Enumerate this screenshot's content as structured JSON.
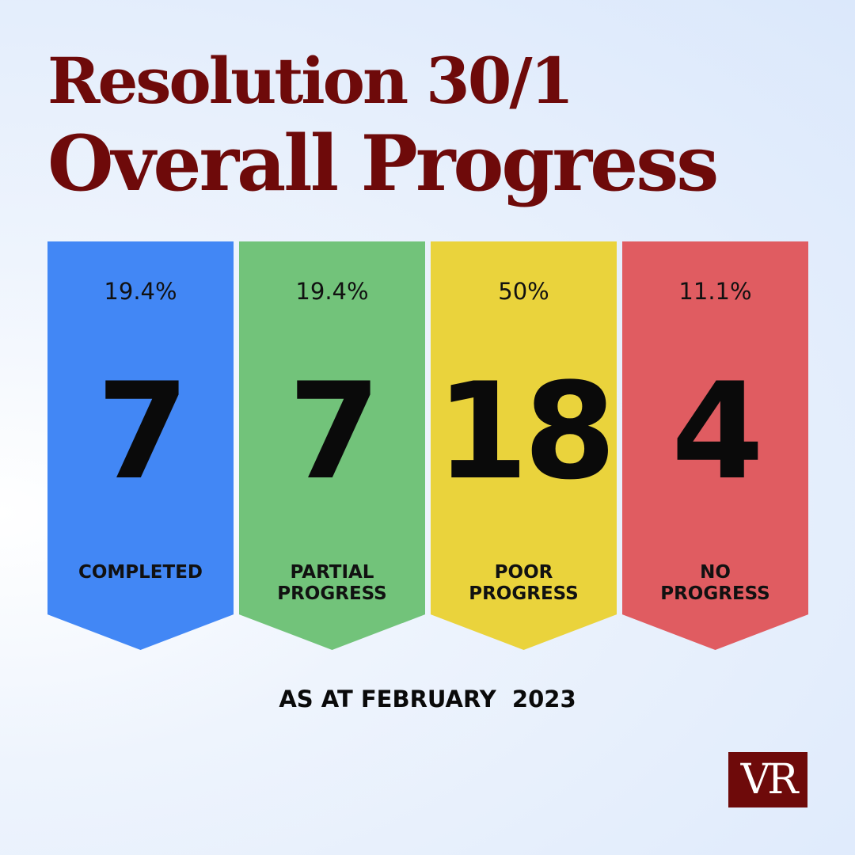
{
  "title": {
    "line1": "Resolution 30/1",
    "line2": "Overall Progress"
  },
  "categories": [
    {
      "percent": "19.4%",
      "count": "7",
      "label": "COMPLETED",
      "color": "#4287f5"
    },
    {
      "percent": "19.4%",
      "count": "7",
      "label": "PARTIAL\nPROGRESS",
      "color": "#72c37a"
    },
    {
      "percent": "50%",
      "count": "18",
      "label": "POOR\nPROGRESS",
      "color": "#ead33c"
    },
    {
      "percent": "11.1%",
      "count": "4",
      "label": "NO\nPROGRESS",
      "color": "#e05c61"
    }
  ],
  "footer": {
    "as_at": "AS AT FEBRUARY  2023"
  },
  "logo": {
    "text": "VR",
    "color": "#6e0a0a"
  }
}
